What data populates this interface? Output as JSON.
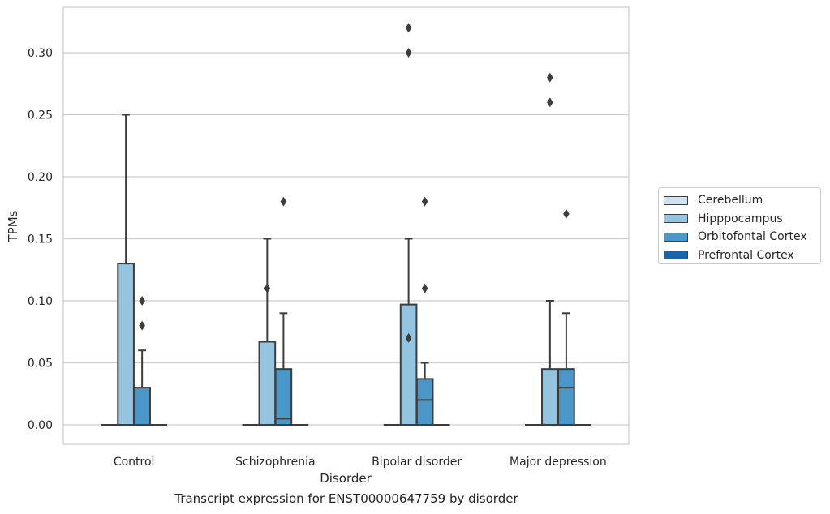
{
  "chart_data": {
    "type": "box",
    "title": "",
    "caption": "Transcript expression for ENST00000647759 by disorder",
    "xlabel": "Disorder",
    "ylabel": "TPMs",
    "ylim": [
      -0.016,
      0.337
    ],
    "yticks": [
      "0.00",
      "0.05",
      "0.10",
      "0.15",
      "0.20",
      "0.25",
      "0.30"
    ],
    "grid": true,
    "legend_position": "right",
    "categories": [
      "Control",
      "Schizophrenia",
      "Bipolar disorder",
      "Major depression"
    ],
    "series": [
      {
        "name": "Cerebellum",
        "color": "#d0e1f2",
        "boxes": [
          {
            "category": "Control",
            "q1": 0,
            "median": 0,
            "q3": 0,
            "whisker_low": 0,
            "whisker_high": 0,
            "outliers": []
          },
          {
            "category": "Schizophrenia",
            "q1": 0,
            "median": 0,
            "q3": 0,
            "whisker_low": 0,
            "whisker_high": 0,
            "outliers": []
          },
          {
            "category": "Bipolar disorder",
            "q1": 0,
            "median": 0,
            "q3": 0,
            "whisker_low": 0,
            "whisker_high": 0,
            "outliers": []
          },
          {
            "category": "Major depression",
            "q1": 0,
            "median": 0,
            "q3": 0,
            "whisker_low": 0,
            "whisker_high": 0,
            "outliers": []
          }
        ]
      },
      {
        "name": "Hipppocampus",
        "color": "#94c4df",
        "boxes": [
          {
            "category": "Control",
            "q1": 0,
            "median": 0,
            "q3": 0.13,
            "whisker_low": 0,
            "whisker_high": 0.25,
            "outliers": []
          },
          {
            "category": "Schizophrenia",
            "q1": 0,
            "median": 0,
            "q3": 0.067,
            "whisker_low": 0,
            "whisker_high": 0.15,
            "outliers": [
              0.11
            ]
          },
          {
            "category": "Bipolar disorder",
            "q1": 0,
            "median": 0,
            "q3": 0.097,
            "whisker_low": 0,
            "whisker_high": 0.15,
            "outliers": [
              0.07,
              0.3,
              0.32
            ]
          },
          {
            "category": "Major depression",
            "q1": 0,
            "median": 0,
            "q3": 0.045,
            "whisker_low": 0,
            "whisker_high": 0.1,
            "outliers": [
              0.26,
              0.28
            ]
          }
        ]
      },
      {
        "name": "Orbitofontal Cortex",
        "color": "#4a98c9",
        "boxes": [
          {
            "category": "Control",
            "q1": 0,
            "median": 0,
            "q3": 0.03,
            "whisker_low": 0,
            "whisker_high": 0.06,
            "outliers": [
              0.08,
              0.1
            ]
          },
          {
            "category": "Schizophrenia",
            "q1": 0,
            "median": 0.005,
            "q3": 0.045,
            "whisker_low": 0,
            "whisker_high": 0.09,
            "outliers": [
              0.18
            ]
          },
          {
            "category": "Bipolar disorder",
            "q1": 0,
            "median": 0.02,
            "q3": 0.037,
            "whisker_low": 0,
            "whisker_high": 0.05,
            "outliers": [
              0.11,
              0.18
            ]
          },
          {
            "category": "Major depression",
            "q1": 0,
            "median": 0.03,
            "q3": 0.045,
            "whisker_low": 0,
            "whisker_high": 0.09,
            "outliers": [
              0.17
            ]
          }
        ]
      },
      {
        "name": "Prefrontal Cortex",
        "color": "#1764ab",
        "boxes": [
          {
            "category": "Control",
            "q1": 0,
            "median": 0,
            "q3": 0,
            "whisker_low": 0,
            "whisker_high": 0,
            "outliers": []
          },
          {
            "category": "Schizophrenia",
            "q1": 0,
            "median": 0,
            "q3": 0,
            "whisker_low": 0,
            "whisker_high": 0,
            "outliers": []
          },
          {
            "category": "Bipolar disorder",
            "q1": 0,
            "median": 0,
            "q3": 0,
            "whisker_low": 0,
            "whisker_high": 0,
            "outliers": []
          },
          {
            "category": "Major depression",
            "q1": 0,
            "median": 0,
            "q3": 0,
            "whisker_low": 0,
            "whisker_high": 0,
            "outliers": []
          }
        ]
      }
    ]
  }
}
